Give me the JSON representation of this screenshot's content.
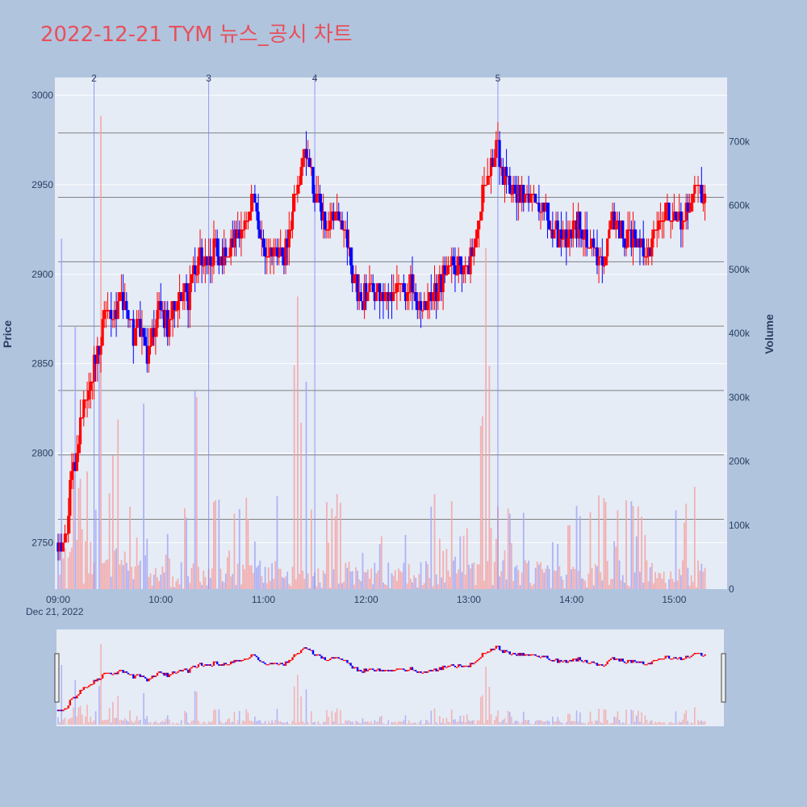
{
  "chart_data": {
    "type": "candlestick",
    "title": "2022-12-21 TYM 뉴스_공시 차트",
    "yaxis_left": {
      "title": "Price",
      "range": [
        2724,
        3010
      ],
      "ticks": [
        2750,
        2800,
        2850,
        2900,
        2950,
        3000
      ]
    },
    "yaxis_right": {
      "title": "Volume",
      "range": [
        0,
        800000
      ],
      "ticks": [
        0,
        100000,
        200000,
        300000,
        400000,
        500000,
        600000,
        700000
      ],
      "tick_labels": [
        "0",
        "100k",
        "200k",
        "300k",
        "400k",
        "500k",
        "600k",
        "700k"
      ]
    },
    "xaxis": {
      "range": [
        "09:00",
        "15:30"
      ],
      "ticks": [
        "09:00",
        "10:00",
        "11:00",
        "12:00",
        "13:00",
        "14:00",
        "15:00"
      ],
      "date_label": "Dec 21, 2022"
    },
    "grid": true,
    "up_color": "#ff0000",
    "down_color": "#0000ff",
    "news_markers": [
      {
        "label": "2",
        "time": "09:21"
      },
      {
        "label": "3",
        "time": "10:28"
      },
      {
        "label": "4",
        "time": "11:30"
      },
      {
        "label": "5",
        "time": "13:17"
      }
    ],
    "reference_levels": [
      2979,
      2943,
      2907,
      2871,
      2835,
      2799,
      2763
    ],
    "price_path": [
      [
        "09:00",
        2750
      ],
      [
        "09:04",
        2752
      ],
      [
        "09:08",
        2785
      ],
      [
        "09:12",
        2805
      ],
      [
        "09:15",
        2830
      ],
      [
        "09:20",
        2845
      ],
      [
        "09:25",
        2865
      ],
      [
        "09:28",
        2885
      ],
      [
        "09:32",
        2880
      ],
      [
        "09:36",
        2885
      ],
      [
        "09:40",
        2875
      ],
      [
        "09:44",
        2868
      ],
      [
        "09:48",
        2870
      ],
      [
        "09:52",
        2858
      ],
      [
        "09:56",
        2870
      ],
      [
        "10:00",
        2880
      ],
      [
        "10:04",
        2872
      ],
      [
        "10:08",
        2880
      ],
      [
        "10:12",
        2890
      ],
      [
        "10:16",
        2885
      ],
      [
        "10:20",
        2905
      ],
      [
        "10:24",
        2912
      ],
      [
        "10:28",
        2908
      ],
      [
        "10:32",
        2915
      ],
      [
        "10:36",
        2908
      ],
      [
        "10:40",
        2912
      ],
      [
        "10:44",
        2922
      ],
      [
        "10:48",
        2930
      ],
      [
        "10:52",
        2940
      ],
      [
        "10:56",
        2935
      ],
      [
        "11:00",
        2910
      ],
      [
        "11:04",
        2908
      ],
      [
        "11:08",
        2915
      ],
      [
        "11:12",
        2912
      ],
      [
        "11:16",
        2930
      ],
      [
        "11:20",
        2950
      ],
      [
        "11:24",
        2970
      ],
      [
        "11:28",
        2955
      ],
      [
        "11:32",
        2940
      ],
      [
        "11:36",
        2930
      ],
      [
        "11:40",
        2935
      ],
      [
        "11:44",
        2928
      ],
      [
        "11:48",
        2920
      ],
      [
        "11:52",
        2900
      ],
      [
        "11:56",
        2890
      ],
      [
        "12:00",
        2888
      ],
      [
        "12:05",
        2892
      ],
      [
        "12:10",
        2887
      ],
      [
        "12:15",
        2892
      ],
      [
        "12:20",
        2890
      ],
      [
        "12:25",
        2895
      ],
      [
        "12:30",
        2888
      ],
      [
        "12:35",
        2882
      ],
      [
        "12:40",
        2888
      ],
      [
        "12:45",
        2900
      ],
      [
        "12:50",
        2908
      ],
      [
        "12:55",
        2905
      ],
      [
        "13:00",
        2902
      ],
      [
        "13:04",
        2920
      ],
      [
        "13:08",
        2945
      ],
      [
        "13:12",
        2960
      ],
      [
        "13:16",
        2970
      ],
      [
        "13:20",
        2955
      ],
      [
        "13:24",
        2950
      ],
      [
        "13:28",
        2945
      ],
      [
        "13:32",
        2940
      ],
      [
        "13:36",
        2945
      ],
      [
        "13:40",
        2938
      ],
      [
        "13:44",
        2935
      ],
      [
        "13:48",
        2930
      ],
      [
        "13:52",
        2922
      ],
      [
        "13:56",
        2920
      ],
      [
        "14:00",
        2925
      ],
      [
        "14:04",
        2928
      ],
      [
        "14:08",
        2922
      ],
      [
        "14:12",
        2915
      ],
      [
        "14:16",
        2910
      ],
      [
        "14:20",
        2915
      ],
      [
        "14:24",
        2928
      ],
      [
        "14:28",
        2925
      ],
      [
        "14:32",
        2920
      ],
      [
        "14:36",
        2917
      ],
      [
        "14:40",
        2915
      ],
      [
        "14:44",
        2913
      ],
      [
        "14:48",
        2918
      ],
      [
        "14:52",
        2930
      ],
      [
        "14:56",
        2935
      ],
      [
        "15:00",
        2935
      ],
      [
        "15:04",
        2932
      ],
      [
        "15:08",
        2935
      ],
      [
        "15:12",
        2945
      ],
      [
        "15:15",
        2945
      ],
      [
        "15:18",
        2940
      ]
    ]
  }
}
